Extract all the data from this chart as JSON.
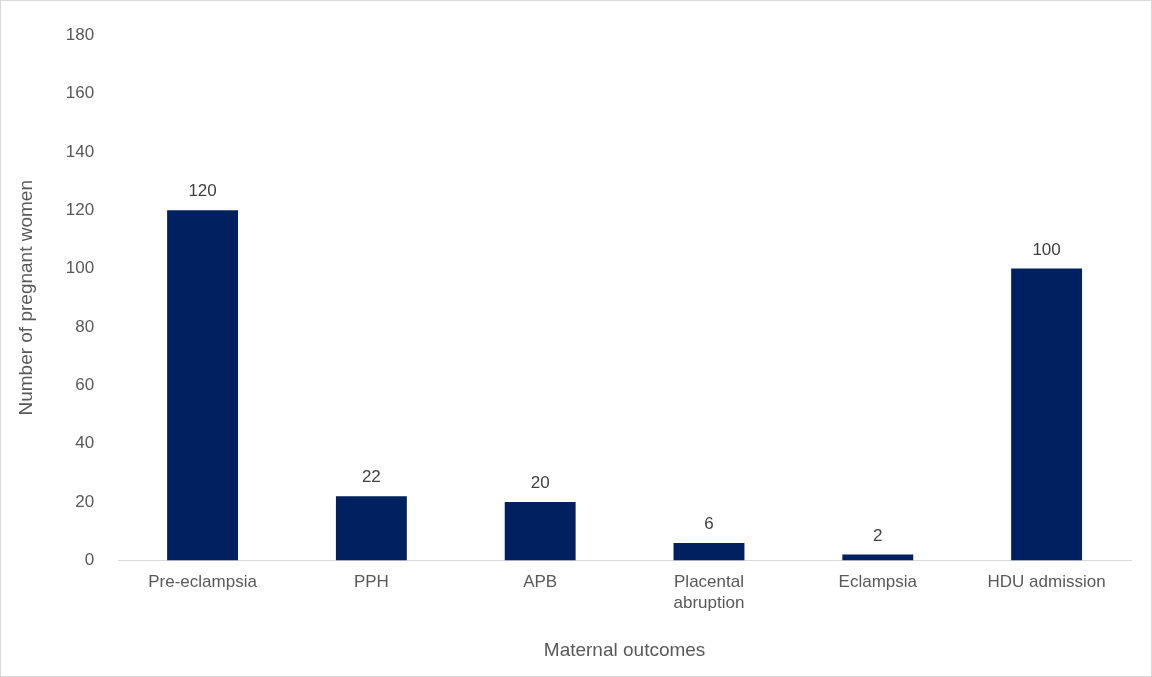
{
  "chart_data": {
    "type": "bar",
    "xlabel": "Maternal outcomes",
    "ylabel": "Number of pregnant women",
    "categories": [
      "Pre-eclampsia",
      "PPH",
      "APB",
      "Placental abruption",
      "Eclampsia",
      "HDU admission"
    ],
    "values": [
      120,
      22,
      20,
      6,
      2,
      100
    ],
    "color": "#002060",
    "ylim": [
      0,
      180
    ],
    "yticks": [
      0,
      20,
      40,
      60,
      80,
      100,
      120,
      140,
      160,
      180
    ],
    "grid": false,
    "legend": false,
    "data_labels": true
  }
}
